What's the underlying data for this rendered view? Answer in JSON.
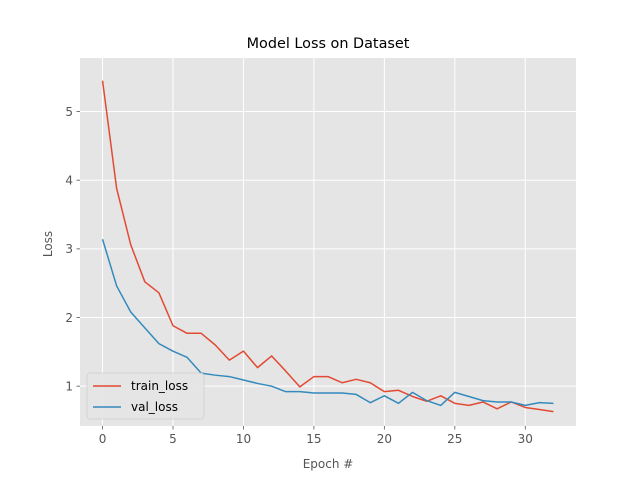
{
  "chart_data": {
    "type": "line",
    "title": "Model Loss on Dataset",
    "xlabel": "Epoch #",
    "ylabel": "Loss",
    "xlim": [
      -1.6,
      33.6
    ],
    "ylim": [
      0.42,
      5.78
    ],
    "xticks": [
      0,
      5,
      10,
      15,
      20,
      25,
      30
    ],
    "yticks": [
      1,
      2,
      3,
      4,
      5
    ],
    "grid": true,
    "legend_position": "lower-left",
    "x": [
      0,
      1,
      2,
      3,
      4,
      5,
      6,
      7,
      8,
      9,
      10,
      11,
      12,
      13,
      14,
      15,
      16,
      17,
      18,
      19,
      20,
      21,
      22,
      23,
      24,
      25,
      26,
      27,
      28,
      29,
      30,
      31,
      32
    ],
    "series": [
      {
        "name": "train_loss",
        "color": "#E24A33",
        "values": [
          5.45,
          3.88,
          3.06,
          2.52,
          2.36,
          1.88,
          1.77,
          1.77,
          1.6,
          1.38,
          1.51,
          1.27,
          1.44,
          1.22,
          0.99,
          1.14,
          1.14,
          1.05,
          1.1,
          1.05,
          0.92,
          0.94,
          0.85,
          0.78,
          0.86,
          0.75,
          0.72,
          0.77,
          0.67,
          0.77,
          0.69,
          0.66,
          0.63
        ]
      },
      {
        "name": "val_loss",
        "color": "#348ABD",
        "values": [
          3.14,
          2.46,
          2.08,
          1.85,
          1.62,
          1.51,
          1.42,
          1.19,
          1.16,
          1.14,
          1.09,
          1.04,
          1.0,
          0.92,
          0.92,
          0.9,
          0.9,
          0.9,
          0.88,
          0.76,
          0.86,
          0.75,
          0.91,
          0.79,
          0.72,
          0.91,
          0.85,
          0.79,
          0.77,
          0.77,
          0.72,
          0.76,
          0.75
        ]
      }
    ]
  }
}
